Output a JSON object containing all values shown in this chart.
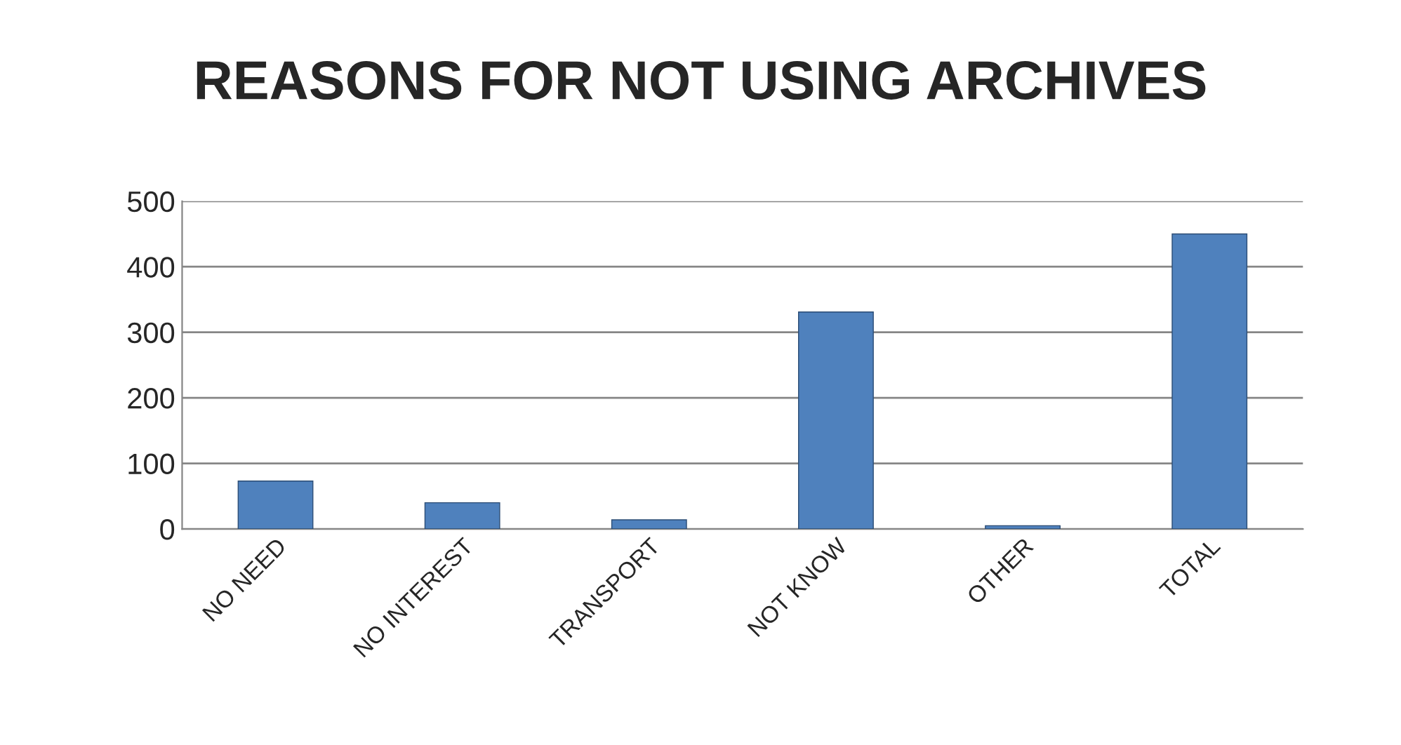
{
  "chart_data": {
    "type": "bar",
    "title": "REASONS FOR NOT USING ARCHIVES",
    "categories": [
      "NO NEED",
      "NO INTEREST",
      "TRANSPORT",
      "NOT KNOW",
      "OTHER",
      "TOTAL"
    ],
    "values": [
      73,
      40,
      14,
      331,
      5,
      450
    ],
    "color": "#4f81bd",
    "ylim": [
      0,
      500
    ],
    "yticks": [
      0,
      100,
      200,
      300,
      400,
      500
    ],
    "grid": "y"
  }
}
